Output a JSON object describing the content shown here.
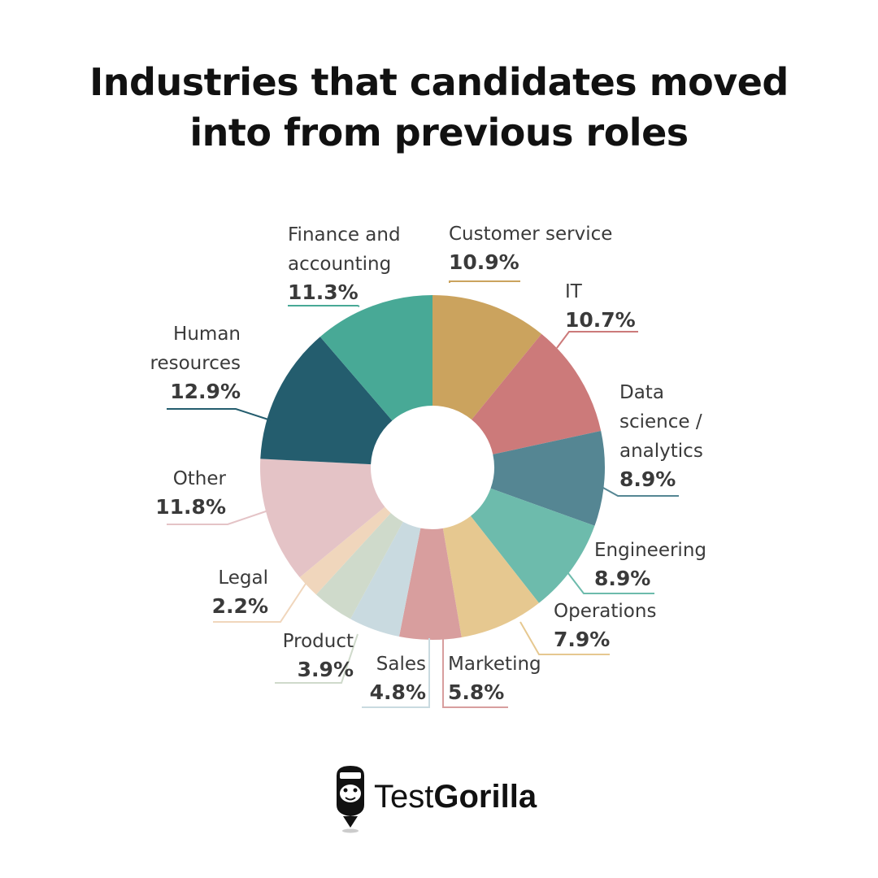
{
  "title": {
    "line1": "Industries that candidates moved",
    "line2": "into from previous roles"
  },
  "logo": {
    "part1": "Test",
    "part2": "Gorilla",
    "icon": "gorilla-head-icon"
  },
  "chart_data": {
    "type": "pie",
    "variant": "donut",
    "title": "Industries that candidates moved into from previous roles",
    "unit": "%",
    "slices": [
      {
        "id": "customer-service",
        "label": [
          "Customer service"
        ],
        "value": 10.9,
        "display": "10.9%",
        "color": "#CBA35E"
      },
      {
        "id": "it",
        "label": [
          "IT"
        ],
        "value": 10.7,
        "display": "10.7%",
        "color": "#CC7A7A"
      },
      {
        "id": "data-science",
        "label": [
          "Data",
          "science /",
          "analytics"
        ],
        "value": 8.9,
        "display": "8.9%",
        "color": "#558693"
      },
      {
        "id": "engineering",
        "label": [
          "Engineering"
        ],
        "value": 8.9,
        "display": "8.9%",
        "color": "#6DBBAC"
      },
      {
        "id": "operations",
        "label": [
          "Operations"
        ],
        "value": 7.9,
        "display": "7.9%",
        "color": "#E6C890"
      },
      {
        "id": "marketing",
        "label": [
          "Marketing"
        ],
        "value": 5.8,
        "display": "5.8%",
        "color": "#D89E9E"
      },
      {
        "id": "sales",
        "label": [
          "Sales"
        ],
        "value": 4.8,
        "display": "4.8%",
        "color": "#C9DAE0"
      },
      {
        "id": "product",
        "label": [
          "Product"
        ],
        "value": 3.9,
        "display": "3.9%",
        "color": "#CFDACB"
      },
      {
        "id": "legal",
        "label": [
          "Legal"
        ],
        "value": 2.2,
        "display": "2.2%",
        "color": "#F0D6BC"
      },
      {
        "id": "other",
        "label": [
          "Other"
        ],
        "value": 11.8,
        "display": "11.8%",
        "color": "#E4C3C6"
      },
      {
        "id": "human-resources",
        "label": [
          "Human",
          "resources"
        ],
        "value": 12.9,
        "display": "12.9%",
        "color": "#245D6E"
      },
      {
        "id": "finance",
        "label": [
          "Finance and",
          "accounting"
        ],
        "value": 11.3,
        "display": "11.3%",
        "color": "#48A996"
      }
    ]
  }
}
